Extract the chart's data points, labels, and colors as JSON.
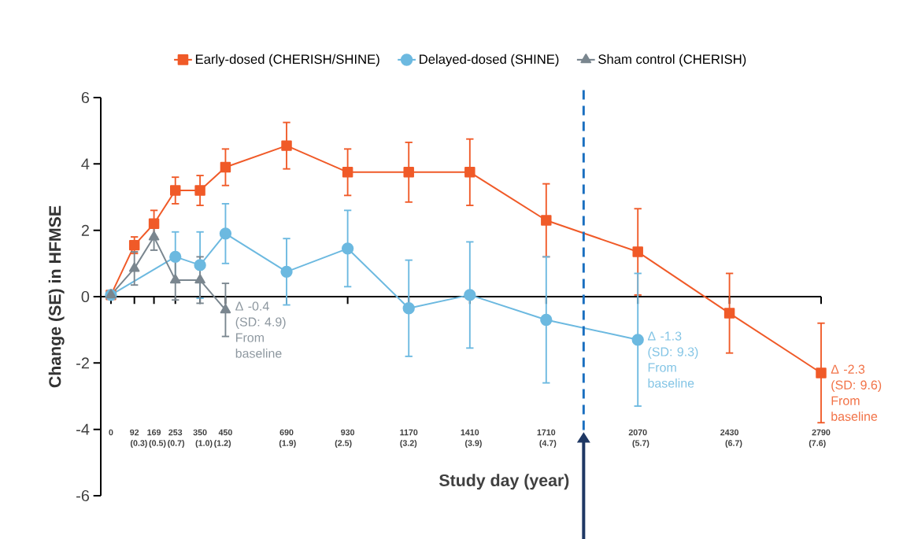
{
  "chart_data": {
    "type": "line",
    "xlabel": "Study day (year)",
    "ylabel": "Change (SE) in HFMSE",
    "xlim": [
      -40,
      2790
    ],
    "ylim": [
      -6,
      6
    ],
    "yticks": [
      -6,
      -4,
      -2,
      0,
      2,
      4,
      6
    ],
    "xticks": [
      0,
      92,
      169,
      253,
      350,
      450,
      690,
      930,
      1170,
      1410,
      1710,
      2070,
      2430,
      2790
    ],
    "x2lim": [
      -0.11,
      7.64
    ],
    "x2ticks": [
      {
        "value": 0.3,
        "label": "(0.3)"
      },
      {
        "value": 0.5,
        "label": "(0.5)"
      },
      {
        "value": 0.7,
        "label": "(0.7)"
      },
      {
        "value": 1.0,
        "label": "(1.0)"
      },
      {
        "value": 1.2,
        "label": "(1.2)"
      },
      {
        "value": 1.9,
        "label": "(1.9)"
      },
      {
        "value": 2.5,
        "label": "(2.5)"
      },
      {
        "value": 3.2,
        "label": "(3.2)"
      },
      {
        "value": 3.9,
        "label": "(3.9)"
      },
      {
        "value": 4.7,
        "label": "(4.7)"
      },
      {
        "value": 5.7,
        "label": "(5.7)"
      },
      {
        "value": 6.7,
        "label": "(6.7)"
      },
      {
        "value": 7.6,
        "label": "(7.6)"
      }
    ],
    "legend": "top",
    "line_style": "solid",
    "series": [
      {
        "name": "Early-dosed (CHERISH/SHINE)",
        "color": "#f05a28",
        "marker": "square",
        "x": [
          0,
          92,
          169,
          253,
          350,
          450,
          690,
          930,
          1170,
          1410,
          1710,
          2070,
          2430,
          2790
        ],
        "values": [
          0.05,
          1.55,
          2.2,
          3.2,
          3.2,
          3.9,
          4.55,
          3.75,
          3.75,
          3.75,
          2.3,
          1.35,
          -0.5,
          -2.3
        ],
        "errors": [
          null,
          0.25,
          0.4,
          0.4,
          0.45,
          0.55,
          0.7,
          0.7,
          0.9,
          1.0,
          1.1,
          1.3,
          1.2,
          1.5
        ]
      },
      {
        "name": "Delayed-dosed (SHINE)",
        "color": "#6cb9e0",
        "marker": "circle",
        "x": [
          0,
          253,
          350,
          450,
          690,
          930,
          1170,
          1410,
          1710,
          2070
        ],
        "values": [
          0.05,
          1.2,
          0.95,
          1.9,
          0.75,
          1.45,
          -0.35,
          0.05,
          -0.7,
          -1.3
        ],
        "errors": [
          null,
          0.75,
          1.0,
          0.9,
          1.0,
          1.15,
          1.45,
          1.6,
          1.9,
          2.0
        ]
      },
      {
        "name": "Sham control (CHERISH)",
        "color": "#7a868f",
        "marker": "triangle",
        "x": [
          0,
          92,
          169,
          253,
          350,
          450
        ],
        "values": [
          0.05,
          0.85,
          1.8,
          0.5,
          0.5,
          -0.4
        ],
        "errors": [
          null,
          0.5,
          0.4,
          0.6,
          0.7,
          0.8
        ]
      }
    ],
    "ref_lines": [
      {
        "axis": "x",
        "value": 1857,
        "color": "#1a6fc0",
        "line_style": "dashed"
      }
    ],
    "annotations": [
      {
        "text": "Δ -2.3 (SD: 9.6) From baseline",
        "x": 2790,
        "y": -2.3
      },
      {
        "text": "Δ -1.3 (SD: 9.3) From baseline",
        "x": 2070,
        "y": -1.3
      },
      {
        "text": "Δ -0.4 (SD: 4.9) From baseline",
        "x": 450,
        "y": -0.4
      }
    ]
  }
}
